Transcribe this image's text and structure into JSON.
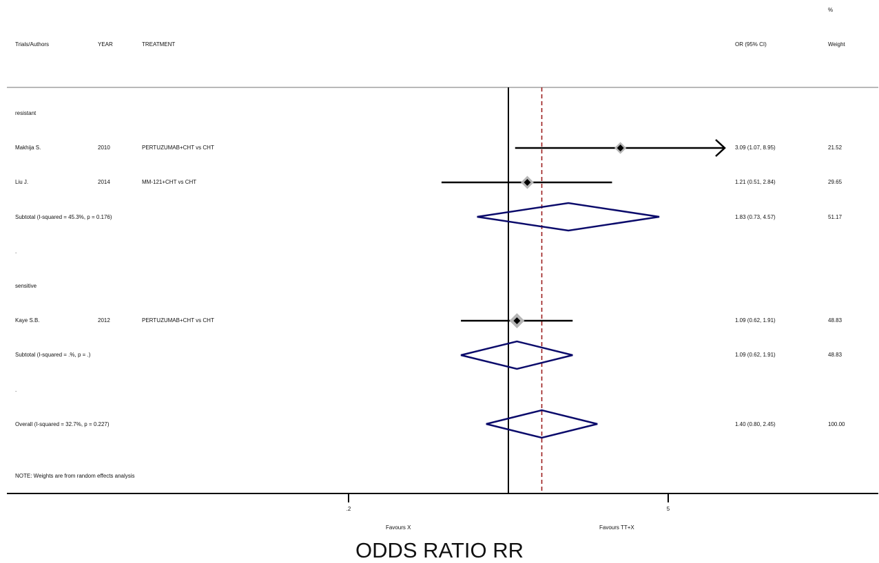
{
  "header": {
    "pct": "%",
    "col_trial": "Trials/Authors",
    "col_year": "YEAR",
    "col_treatment": "TREATMENT",
    "col_or": "OR (95% CI)",
    "col_weight": "Weight"
  },
  "rows": [
    {
      "label": "resistant",
      "year": "",
      "treatment": "",
      "or_text": "",
      "weight": ""
    },
    {
      "label": "Makhija S.",
      "year": "2010",
      "treatment": "PERTUZUMAB+CHT vs CHT",
      "or_text": "3.09 (1.07, 8.95)",
      "weight": "21.52"
    },
    {
      "label": "Liu J.",
      "year": "2014",
      "treatment": "MM-121+CHT vs CHT",
      "or_text": "1.21 (0.51, 2.84)",
      "weight": "29.65"
    },
    {
      "label": "Subtotal  (I-squared = 45.3%, p = 0.176)",
      "year": "",
      "treatment": "",
      "or_text": "1.83 (0.73, 4.57)",
      "weight": "51.17"
    },
    {
      "label": ".",
      "year": "",
      "treatment": "",
      "or_text": "",
      "weight": ""
    },
    {
      "label": "sensitive",
      "year": "",
      "treatment": "",
      "or_text": "",
      "weight": ""
    },
    {
      "label": "Kaye S.B.",
      "year": "2012",
      "treatment": "PERTUZUMAB+CHT vs CHT",
      "or_text": "1.09 (0.62, 1.91)",
      "weight": "48.83"
    },
    {
      "label": "Subtotal  (I-squared = .%, p = .)",
      "year": "",
      "treatment": "",
      "or_text": "1.09 (0.62, 1.91)",
      "weight": "48.83"
    },
    {
      "label": ".",
      "year": "",
      "treatment": "",
      "or_text": "",
      "weight": ""
    },
    {
      "label": "Overall  (I-squared = 32.7%, p = 0.227)",
      "year": "",
      "treatment": "",
      "or_text": "1.40 (0.80, 2.45)",
      "weight": "100.00"
    }
  ],
  "note": "NOTE: Weights are from random effects analysis",
  "axis": {
    "tick_labels": [
      ".2",
      "5"
    ],
    "favours_left": "Favours X",
    "favours_right": "Favours TT+X",
    "xlabel": "ODDS RATIO RR"
  },
  "colors": {
    "diamond": "#0b0b6b",
    "overall_line": "#9b1b1b",
    "ci_line": "#000000",
    "box": "#b5b5b5"
  },
  "chart_data": {
    "type": "forest",
    "scale": "log",
    "null_value": 1,
    "xlim": [
      0.04,
      12
    ],
    "ticks": [
      0.2,
      5
    ],
    "overall_estimate": 1.4,
    "studies": [
      {
        "label": "Makhija S.",
        "or": 3.09,
        "lo": 1.07,
        "hi": 8.95,
        "weight": 21.52,
        "arrow_right": true
      },
      {
        "label": "Liu J.",
        "or": 1.21,
        "lo": 0.51,
        "hi": 2.84,
        "weight": 29.65
      },
      {
        "label": "Kaye S.B.",
        "or": 1.09,
        "lo": 0.62,
        "hi": 1.91,
        "weight": 48.83
      }
    ],
    "pooled": [
      {
        "label": "Subtotal resistant",
        "or": 1.83,
        "lo": 0.73,
        "hi": 4.57
      },
      {
        "label": "Subtotal sensitive",
        "or": 1.09,
        "lo": 0.62,
        "hi": 1.91
      },
      {
        "label": "Overall",
        "or": 1.4,
        "lo": 0.8,
        "hi": 2.45
      }
    ]
  }
}
